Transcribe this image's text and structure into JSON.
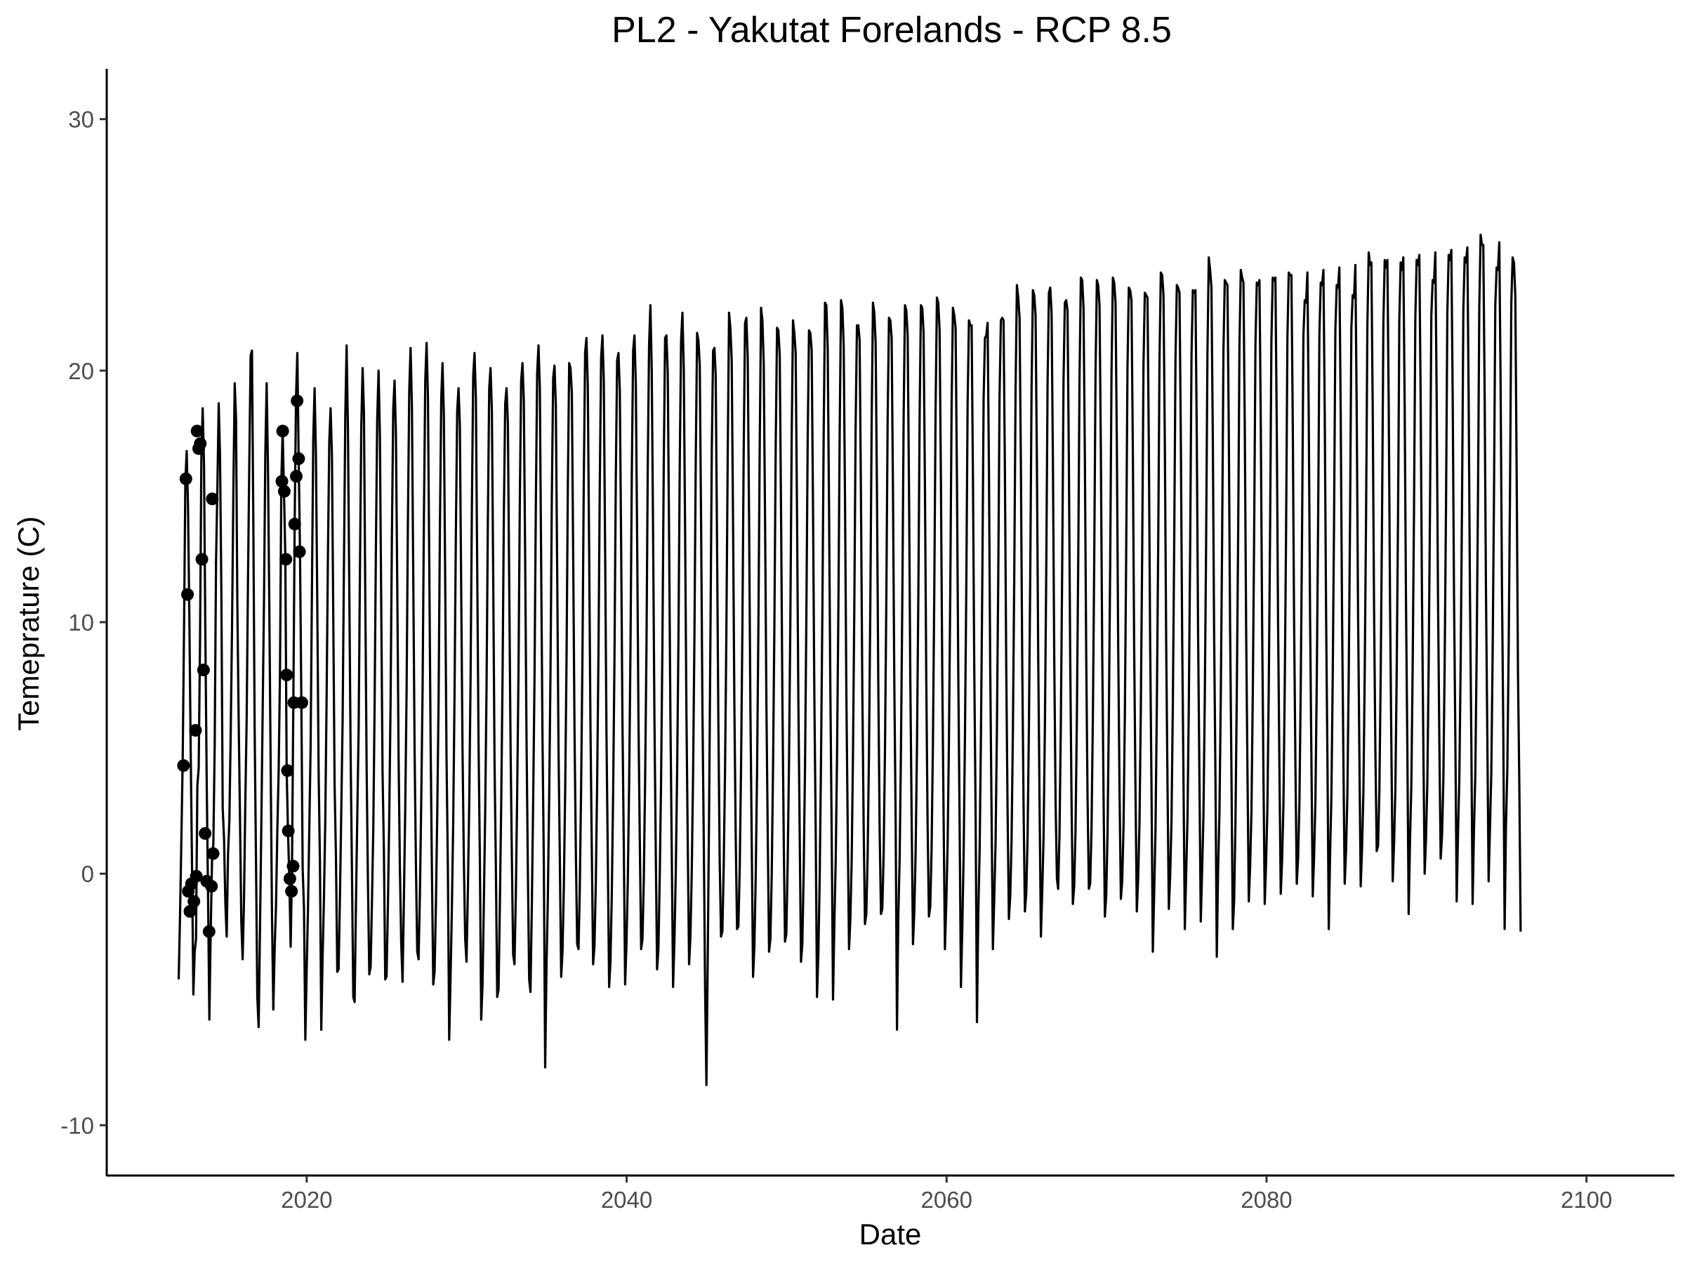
{
  "chart_data": {
    "type": "line",
    "title": "PL2 - Yakutat Forelands - RCP 8.5",
    "xlabel": "Date",
    "ylabel": "Temeprature (C)",
    "xlim": [
      2007.5,
      2105.5
    ],
    "ylim": [
      -12,
      32
    ],
    "x_ticks": [
      {
        "value": 2020,
        "label": "2020"
      },
      {
        "value": 2040,
        "label": "2040"
      },
      {
        "value": 2060,
        "label": "2060"
      },
      {
        "value": 2080,
        "label": "2080"
      },
      {
        "value": 2100,
        "label": "2100"
      }
    ],
    "y_ticks": [
      {
        "value": -10,
        "label": "-10"
      },
      {
        "value": 0,
        "label": "0"
      },
      {
        "value": 10,
        "label": "10"
      },
      {
        "value": 20,
        "label": "20"
      },
      {
        "value": 30,
        "label": "30"
      }
    ],
    "grid": false,
    "legend": "none",
    "series": [
      {
        "type": "line",
        "color": "#000000",
        "x_start": 2012.0,
        "x_step": 0.0833,
        "values": [
          -4.2,
          -1.7,
          1.3,
          4.5,
          9.7,
          15.6,
          16.8,
          14.6,
          10.2,
          4.9,
          0.3,
          -4.8,
          -3.1,
          -2.6,
          3.5,
          4.2,
          9.2,
          16.5,
          18.5,
          16.2,
          9.5,
          3.7,
          -0.8,
          -5.8,
          -2.3,
          0.5,
          1.2,
          5.1,
          12.4,
          15.3,
          18.7,
          16.6,
          11.2,
          2.6,
          1.4,
          -1.2,
          -2.5,
          0.8,
          2.1,
          5.6,
          9.8,
          15.2,
          19.5,
          18.1,
          10.9,
          6.2,
          2.3,
          -1.9,
          -3.4,
          -1.1,
          2.8,
          6.1,
          11.6,
          16.4,
          20.6,
          20.8,
          14.1,
          5.8,
          0.6,
          -4.9,
          -6.1,
          -2.2,
          1.9,
          6.4,
          10.8,
          16.7,
          19.5,
          16.1,
          10.6,
          4.3,
          -1.6,
          -5.4,
          -3.0,
          -1.3,
          1.7,
          4.1,
          8.0,
          15.6,
          17.6,
          15.2,
          12.6,
          4.1,
          1.7,
          -0.2,
          -2.9,
          0.3,
          6.8,
          13.9,
          18.9,
          20.7,
          16.5,
          12.8,
          6.9,
          0.2,
          -1.4,
          -6.6,
          -4.0,
          -1.5,
          1.7,
          5.0,
          11.3,
          17.3,
          19.3,
          16.6,
          10.8,
          4.1,
          0.5,
          -6.2,
          -3.3,
          -1.0,
          2.1,
          7.0,
          12.7,
          17.2,
          18.5,
          16.6,
          10.2,
          3.5,
          0.7,
          -3.9,
          -3.8,
          -0.9,
          2.5,
          6.1,
          12.3,
          18.2,
          21.0,
          17.6,
          11.4,
          4.8,
          0.1,
          -4.9,
          -5.1,
          -1.2,
          2.3,
          5.7,
          12.1,
          17.8,
          20.1,
          18.3,
          11.0,
          4.2,
          -0.4,
          -4.0,
          -3.7,
          -1.1,
          1.8,
          6.5,
          12.9,
          18.1,
          20.0,
          17.4,
          10.7,
          4.0,
          0.9,
          -4.2,
          -4.1,
          -1.3,
          2.2,
          6.8,
          13.4,
          18.5,
          19.6,
          17.5,
          11.6,
          4.7,
          0.2,
          -2.8,
          -4.3,
          -1.0,
          2.6,
          7.2,
          14.0,
          19.2,
          20.9,
          18.6,
          11.9,
          5.0,
          0.4,
          -3.1,
          -3.4,
          -0.8,
          2.9,
          7.3,
          14.2,
          19.6,
          21.1,
          19.0,
          12.4,
          5.3,
          0.1,
          -4.4,
          -3.9,
          -1.2,
          2.4,
          6.9,
          13.8,
          18.9,
          20.3,
          18.2,
          11.7,
          4.6,
          0.3,
          -6.6,
          -4.2,
          -1.4,
          2.0,
          7.1,
          13.5,
          18.4,
          19.3,
          17.8,
          11.3,
          4.9,
          0.5,
          -2.6,
          -3.5,
          -0.7,
          2.7,
          7.6,
          14.5,
          19.8,
          20.7,
          18.9,
          12.2,
          5.2,
          0.6,
          -5.8,
          -4.4,
          -1.1,
          2.5,
          7.4,
          14.1,
          19.3,
          20.1,
          18.4,
          11.8,
          4.4,
          0.2,
          -4.9,
          -4.6,
          -1.2,
          2.8,
          7.8,
          14.4,
          18.7,
          19.3,
          17.9,
          11.5,
          5.1,
          0.8,
          -3.2,
          -3.6,
          -0.9,
          3.1,
          8.0,
          14.8,
          19.6,
          20.3,
          18.8,
          12.6,
          5.5,
          0.3,
          -4.2,
          -4.7,
          -1.3,
          2.9,
          7.7,
          14.6,
          19.9,
          21.0,
          19.3,
          12.3,
          5.4,
          0.4,
          -7.7,
          -3.7,
          -1.0,
          3.0,
          8.1,
          15.0,
          19.7,
          20.2,
          18.6,
          12.1,
          5.0,
          0.6,
          -4.1,
          -3.1,
          -0.5,
          3.3,
          8.4,
          15.4,
          20.3,
          20.1,
          19.1,
          12.7,
          5.7,
          0.9,
          -2.8,
          -3.0,
          -0.6,
          3.4,
          8.6,
          15.6,
          20.7,
          21.3,
          19.4,
          13.0,
          5.9,
          1.0,
          -3.6,
          -2.9,
          -0.4,
          3.5,
          8.7,
          15.5,
          20.5,
          21.4,
          19.6,
          12.9,
          5.6,
          0.7,
          -4.5,
          -3.5,
          -0.8,
          3.2,
          8.5,
          15.7,
          20.4,
          20.7,
          19.2,
          13.1,
          6.0,
          1.1,
          -4.4,
          -2.8,
          -0.3,
          3.6,
          8.9,
          15.9,
          20.8,
          21.4,
          19.5,
          13.3,
          6.1,
          1.3,
          -3.0,
          -2.6,
          -0.2,
          3.8,
          9.0,
          16.1,
          21.0,
          22.6,
          20.0,
          13.6,
          6.3,
          1.0,
          -3.8,
          -3.0,
          -0.1,
          3.7,
          9.1,
          16.2,
          21.3,
          21.4,
          19.9,
          13.4,
          6.2,
          0.9,
          -4.5,
          -2.7,
          0.0,
          3.9,
          9.2,
          16.3,
          21.2,
          22.3,
          20.1,
          13.7,
          6.4,
          1.2,
          -3.6,
          -2.5,
          0.1,
          4.0,
          9.4,
          16.5,
          21.5,
          21.2,
          20.2,
          13.9,
          6.5,
          1.4,
          -4.6,
          -8.4,
          -3.2,
          2.5,
          9.5,
          16.8,
          20.8,
          20.9,
          19.8,
          13.2,
          6.0,
          0.5,
          -2.5,
          -2.3,
          0.3,
          4.1,
          9.6,
          16.6,
          22.3,
          21.7,
          20.4,
          14.0,
          6.7,
          1.5,
          -2.2,
          -2.1,
          0.2,
          4.2,
          9.7,
          16.9,
          21.9,
          22.1,
          20.5,
          14.2,
          6.6,
          1.3,
          -4.1,
          -2.9,
          -0.1,
          4.0,
          9.8,
          17.0,
          22.5,
          22.0,
          20.3,
          14.1,
          6.8,
          1.6,
          -3.1,
          -2.6,
          0.0,
          4.3,
          9.9,
          17.1,
          21.7,
          21.6,
          20.6,
          14.3,
          6.9,
          1.4,
          -2.7,
          -2.4,
          0.4,
          4.4,
          10.0,
          17.3,
          22.0,
          21.5,
          20.7,
          14.4,
          7.0,
          1.7,
          -3.5,
          -2.8,
          0.1,
          4.2,
          10.1,
          17.2,
          21.6,
          21.5,
          20.8,
          14.6,
          7.1,
          1.8,
          -4.9,
          -3.2,
          -0.2,
          4.5,
          10.3,
          17.5,
          22.7,
          22.6,
          20.9,
          14.7,
          7.3,
          1.6,
          -5.0,
          -2.0,
          0.5,
          4.6,
          10.4,
          17.6,
          22.8,
          22.5,
          21.0,
          14.8,
          7.2,
          1.9,
          -3.0,
          -1.8,
          0.6,
          4.7,
          10.5,
          17.8,
          21.8,
          21.8,
          21.2,
          15.0,
          7.4,
          2.0,
          -2.0,
          -1.6,
          0.7,
          4.8,
          10.6,
          17.9,
          22.7,
          22.3,
          21.1,
          15.1,
          7.5,
          1.8,
          -1.6,
          -1.4,
          0.8,
          4.9,
          10.8,
          18.1,
          22.1,
          22.0,
          21.3,
          15.2,
          7.6,
          2.1,
          -6.2,
          -1.7,
          0.6,
          5.0,
          10.9,
          18.2,
          22.6,
          22.4,
          21.4,
          15.4,
          7.7,
          2.2,
          -2.8,
          -1.5,
          0.9,
          5.1,
          11.0,
          18.3,
          22.6,
          22.5,
          21.5,
          15.5,
          7.8,
          2.0,
          -1.7,
          -1.3,
          1.0,
          5.2,
          11.1,
          18.5,
          22.9,
          22.7,
          21.6,
          15.6,
          7.9,
          2.3,
          -3.0,
          -1.2,
          1.1,
          5.3,
          11.2,
          18.6,
          22.5,
          22.2,
          21.7,
          15.7,
          8.0,
          2.1,
          -4.5,
          -2.2,
          0.7,
          5.4,
          11.3,
          18.7,
          22.0,
          21.8,
          21.8,
          15.8,
          8.1,
          2.4,
          -5.9,
          -1.6,
          0.9,
          5.5,
          11.5,
          18.9,
          21.3,
          21.4,
          21.9,
          16.0,
          8.2,
          2.5,
          -3.0,
          -1.0,
          1.2,
          5.6,
          11.6,
          19.0,
          22.0,
          22.1,
          22.0,
          16.1,
          8.3,
          2.6,
          -1.8,
          -0.9,
          1.3,
          5.7,
          11.7,
          19.2,
          23.4,
          22.9,
          22.1,
          16.2,
          8.4,
          2.7,
          -1.5,
          -0.8,
          1.4,
          5.8,
          11.8,
          19.3,
          23.2,
          23.0,
          22.2,
          16.3,
          8.5,
          2.8,
          -2.5,
          -0.7,
          1.5,
          5.9,
          12.0,
          19.5,
          23.1,
          23.3,
          22.3,
          16.4,
          8.6,
          2.9,
          -0.2,
          -0.6,
          1.6,
          6.0,
          12.1,
          19.6,
          22.7,
          22.8,
          22.4,
          16.5,
          8.7,
          3.0,
          -1.2,
          -0.5,
          1.7,
          6.1,
          12.2,
          19.7,
          23.7,
          23.6,
          22.5,
          16.6,
          8.8,
          3.1,
          -0.6,
          -0.4,
          1.8,
          6.2,
          12.3,
          19.9,
          23.6,
          23.4,
          22.6,
          16.8,
          8.9,
          3.2,
          -1.7,
          -0.9,
          1.6,
          6.3,
          12.4,
          20.0,
          23.7,
          23.5,
          22.7,
          16.9,
          9.0,
          3.3,
          -1.0,
          -0.3,
          1.9,
          6.4,
          12.5,
          20.1,
          23.3,
          23.2,
          22.8,
          17.0,
          9.1,
          3.4,
          -1.5,
          -0.2,
          2.0,
          6.5,
          12.6,
          20.2,
          23.1,
          23.0,
          22.9,
          17.1,
          9.2,
          3.5,
          -3.1,
          -0.8,
          1.7,
          6.6,
          12.8,
          20.4,
          23.9,
          23.8,
          23.0,
          17.2,
          9.3,
          3.6,
          -1.4,
          -0.1,
          2.1,
          6.7,
          12.9,
          20.5,
          23.4,
          23.3,
          23.1,
          17.3,
          9.4,
          3.7,
          -2.2,
          0.0,
          2.2,
          6.8,
          13.0,
          20.6,
          23.2,
          23.1,
          23.2,
          17.4,
          9.5,
          3.8,
          -1.9,
          0.1,
          2.3,
          6.9,
          13.1,
          20.7,
          24.5,
          24.0,
          23.3,
          17.5,
          9.6,
          3.9,
          -3.3,
          0.2,
          2.4,
          7.0,
          13.2,
          20.8,
          23.6,
          23.5,
          23.4,
          17.6,
          9.7,
          4.0,
          -2.2,
          -1.1,
          2.0,
          7.1,
          13.3,
          21.0,
          24.0,
          23.7,
          23.5,
          17.7,
          9.8,
          4.1,
          -1.1,
          0.3,
          2.5,
          7.2,
          13.4,
          21.1,
          23.5,
          23.4,
          23.6,
          17.8,
          9.9,
          4.2,
          -1.2,
          0.4,
          2.6,
          7.3,
          13.5,
          21.2,
          23.7,
          23.6,
          23.7,
          17.9,
          10.0,
          4.3,
          -0.8,
          0.5,
          2.7,
          7.4,
          13.6,
          21.3,
          23.9,
          23.8,
          23.8,
          18.0,
          10.1,
          4.4,
          -0.4,
          0.6,
          2.8,
          7.5,
          13.7,
          21.4,
          22.8,
          22.7,
          23.9,
          18.1,
          10.2,
          4.5,
          -0.9,
          0.7,
          2.9,
          7.6,
          13.8,
          21.5,
          23.5,
          23.4,
          24.0,
          18.2,
          10.3,
          4.6,
          -2.2,
          0.8,
          3.0,
          7.7,
          13.9,
          21.6,
          23.4,
          23.3,
          24.1,
          18.3,
          10.4,
          4.7,
          -0.4,
          0.9,
          3.1,
          7.8,
          14.0,
          21.7,
          23.0,
          22.9,
          24.2,
          18.4,
          10.5,
          4.8,
          -0.5,
          1.0,
          3.2,
          7.9,
          14.1,
          21.8,
          24.7,
          24.2,
          24.3,
          18.5,
          10.6,
          4.9,
          0.9,
          1.1,
          3.3,
          8.0,
          14.2,
          21.9,
          24.4,
          24.1,
          24.4,
          18.6,
          10.7,
          5.0,
          -0.3,
          1.2,
          3.4,
          8.1,
          14.3,
          22.0,
          24.3,
          24.0,
          24.5,
          18.7,
          10.8,
          5.1,
          -1.6,
          1.3,
          3.5,
          8.2,
          14.4,
          22.1,
          24.4,
          24.2,
          24.6,
          18.8,
          10.9,
          5.2,
          0.0,
          1.4,
          3.6,
          8.3,
          14.5,
          22.2,
          23.6,
          23.5,
          24.7,
          18.9,
          11.0,
          5.3,
          0.6,
          1.5,
          3.7,
          8.4,
          14.6,
          22.3,
          24.6,
          24.4,
          24.8,
          19.0,
          11.1,
          5.4,
          -1.1,
          1.6,
          3.8,
          8.5,
          14.7,
          22.4,
          24.5,
          24.3,
          24.9,
          19.1,
          11.2,
          5.5,
          -1.2,
          1.7,
          3.9,
          8.6,
          14.8,
          22.5,
          25.4,
          25.0,
          25.0,
          19.2,
          11.3,
          5.6,
          -0.3,
          1.8,
          4.0,
          8.7,
          14.9,
          22.6,
          24.1,
          24.0,
          25.1,
          19.3,
          11.4,
          5.7,
          -2.2,
          1.9,
          4.1,
          8.8,
          15.0,
          22.7,
          24.5,
          24.3,
          23.0,
          16.0,
          8.0,
          3.6,
          -2.3
        ]
      },
      {
        "type": "scatter",
        "color": "#000000",
        "points": [
          [
            2012.3,
            4.3
          ],
          [
            2012.45,
            15.7
          ],
          [
            2012.55,
            11.1
          ],
          [
            2012.6,
            -0.7
          ],
          [
            2012.7,
            -1.5
          ],
          [
            2012.8,
            -0.4
          ],
          [
            2012.95,
            -1.1
          ],
          [
            2013.05,
            5.7
          ],
          [
            2013.15,
            17.6
          ],
          [
            2013.25,
            16.9
          ],
          [
            2013.35,
            17.1
          ],
          [
            2013.45,
            12.5
          ],
          [
            2013.55,
            8.1
          ],
          [
            2013.65,
            1.6
          ],
          [
            2013.9,
            -2.3
          ],
          [
            2013.75,
            -0.3
          ],
          [
            2014.05,
            -0.5
          ],
          [
            2014.1,
            14.9
          ],
          [
            2014.15,
            0.8
          ],
          [
            2013.1,
            -0.1
          ],
          [
            2018.5,
            17.6
          ],
          [
            2018.45,
            15.6
          ],
          [
            2018.6,
            15.2
          ],
          [
            2018.7,
            12.5
          ],
          [
            2018.75,
            7.9
          ],
          [
            2018.8,
            4.1
          ],
          [
            2018.85,
            1.7
          ],
          [
            2018.95,
            -0.2
          ],
          [
            2019.05,
            -0.7
          ],
          [
            2019.15,
            0.3
          ],
          [
            2019.2,
            6.8
          ],
          [
            2019.25,
            13.9
          ],
          [
            2019.35,
            15.8
          ],
          [
            2019.4,
            18.8
          ],
          [
            2019.5,
            16.5
          ],
          [
            2019.55,
            12.8
          ],
          [
            2019.7,
            6.8
          ]
        ]
      }
    ]
  }
}
